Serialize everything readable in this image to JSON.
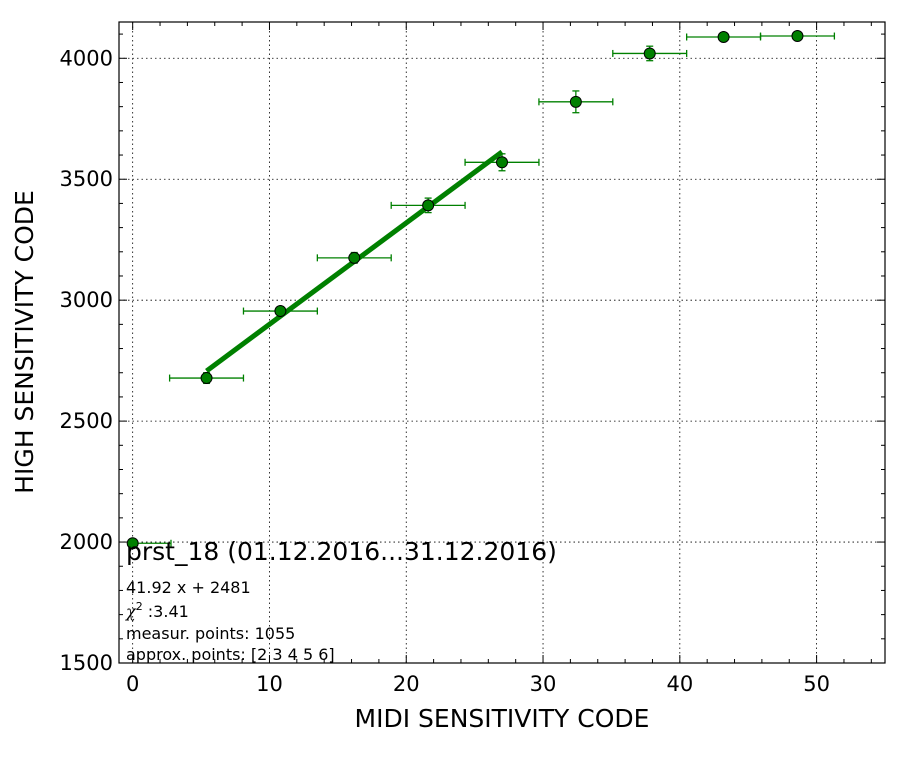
{
  "chart_data": {
    "type": "scatter",
    "xlabel": "MIDI SENSITIVITY CODE",
    "ylabel": "HIGH SENSITIVITY CODE",
    "xlim": [
      -1,
      55
    ],
    "ylim": [
      1500,
      4150
    ],
    "xticks": [
      0,
      10,
      20,
      30,
      40,
      50
    ],
    "yticks": [
      1500,
      2000,
      2500,
      3000,
      3500,
      4000
    ],
    "grid": true,
    "series": [
      {
        "marker": "circle",
        "color": "#008000",
        "points": [
          {
            "x": 0,
            "y": 1995,
            "xerr": [
              0,
              2.8
            ],
            "yerr": 0
          },
          {
            "x": 5.4,
            "y": 2678,
            "xerr": [
              2.7,
              2.7
            ],
            "yerr": 22
          },
          {
            "x": 10.8,
            "y": 2955,
            "xerr": [
              2.7,
              2.7
            ],
            "yerr": 18
          },
          {
            "x": 16.2,
            "y": 3175,
            "xerr": [
              2.7,
              2.7
            ],
            "yerr": 22
          },
          {
            "x": 21.6,
            "y": 3392,
            "xerr": [
              2.7,
              2.7
            ],
            "yerr": 30
          },
          {
            "x": 27.0,
            "y": 3570,
            "xerr": [
              2.7,
              2.7
            ],
            "yerr": 35
          },
          {
            "x": 32.4,
            "y": 3820,
            "xerr": [
              2.7,
              2.7
            ],
            "yerr": 45
          },
          {
            "x": 37.8,
            "y": 4020,
            "xerr": [
              2.7,
              2.7
            ],
            "yerr": 30
          },
          {
            "x": 43.2,
            "y": 4088,
            "xerr": [
              2.7,
              2.7
            ],
            "yerr": 10
          },
          {
            "x": 48.6,
            "y": 4092,
            "xerr": [
              2.7,
              2.7
            ],
            "yerr": 10
          }
        ]
      }
    ],
    "fit_line": {
      "slope": 41.92,
      "intercept": 2481,
      "x_range": [
        5.4,
        27.0
      ],
      "color": "#008000"
    },
    "annotation": {
      "title": "prst_18 (01.12.2016...31.12.2016)",
      "equation": "41.92 x + 2481",
      "chi_label": "χ",
      "chi_sup": "2",
      "chi_value": " :3.41",
      "measur_points": "measur. points: 1055",
      "approx_points": "approx. points: [2 3 4 5 6]"
    }
  }
}
